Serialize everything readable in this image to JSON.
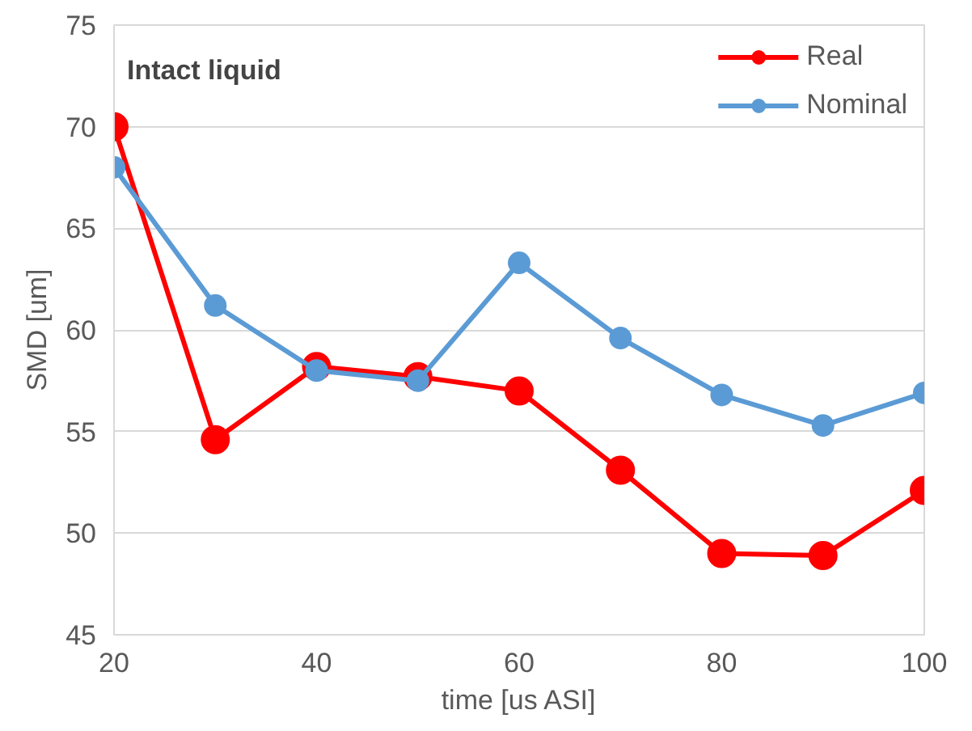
{
  "chart_data": {
    "type": "line",
    "xlabel": "time [us ASI]",
    "ylabel": "SMD [um]",
    "annotations": [
      "Intact liquid"
    ],
    "x": [
      20,
      30,
      40,
      50,
      60,
      70,
      80,
      90,
      100
    ],
    "series": [
      {
        "name": "Real",
        "color": "#ff0000",
        "values": [
          70,
          54.6,
          58.2,
          57.7,
          57,
          53.1,
          49,
          48.9,
          52.1
        ]
      },
      {
        "name": "Nominal",
        "color": "#5b9bd5",
        "values": [
          68,
          61.2,
          58,
          57.5,
          63.3,
          59.6,
          56.8,
          55.3,
          56.9
        ]
      }
    ],
    "xlim": [
      20,
      100
    ],
    "xticks": [
      20,
      40,
      60,
      80,
      100
    ],
    "ylim": [
      45,
      75
    ],
    "yticks": [
      45,
      50,
      55,
      60,
      65,
      70,
      75
    ],
    "grid": "y",
    "legend": "top right",
    "marker": "circle",
    "line_style": "solid"
  }
}
